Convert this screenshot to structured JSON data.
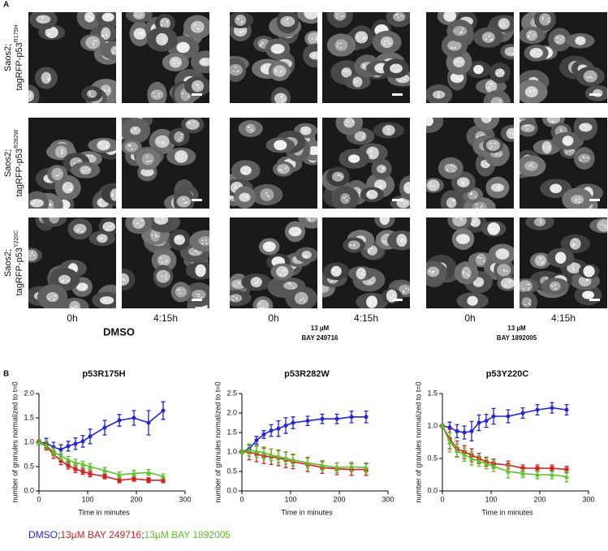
{
  "panel_a": {
    "label": "A",
    "rows": [
      {
        "line1": "Saos2;",
        "line2": "tagRFP-p53",
        "superscript": "R175H"
      },
      {
        "line1": "Saos2;",
        "line2": "tagRFP-p53",
        "superscript": "R282W"
      },
      {
        "line1": "Saos2;",
        "line2": "tagRFP-p53",
        "superscript": "Y220C"
      }
    ],
    "groups": [
      {
        "times": [
          "0h",
          "4:15h"
        ],
        "treatment": [
          "DMSO"
        ]
      },
      {
        "times": [
          "0h",
          "4:15h"
        ],
        "treatment": [
          "13 µM",
          "BAY 249716"
        ]
      },
      {
        "times": [
          "0h",
          "4:15h"
        ],
        "treatment": [
          "13 µM",
          "BAY 1892005"
        ]
      }
    ]
  },
  "panel_b": {
    "label": "B",
    "legend_separator": ";"
  },
  "chart_data": [
    {
      "type": "line",
      "title": "p53R175H",
      "y_label": "number of granules normalized to t=0",
      "x_label": "Time in minutes",
      "x": [
        0,
        15,
        30,
        45,
        60,
        75,
        90,
        105,
        135,
        165,
        195,
        225,
        255
      ],
      "xlim": [
        0,
        300
      ],
      "xticks": [
        0,
        100,
        200,
        300
      ],
      "ylim": [
        0,
        2
      ],
      "yticks": [
        {
          "value": 0,
          "label": "0.0"
        },
        0.5,
        {
          "value": 1,
          "label": "1.0"
        },
        1.5,
        {
          "value": 2,
          "label": "2.0"
        }
      ],
      "series": [
        {
          "name": "DMSO",
          "color": "#2424d8",
          "marker": "circle",
          "values": [
            1.0,
            0.98,
            0.9,
            0.85,
            0.92,
            0.97,
            1.02,
            1.12,
            1.3,
            1.45,
            1.5,
            1.4,
            1.65
          ],
          "errors": [
            0.05,
            0.1,
            0.1,
            0.1,
            0.1,
            0.12,
            0.12,
            0.15,
            0.15,
            0.12,
            0.15,
            0.25,
            0.18
          ]
        },
        {
          "name": "13µM BAY 249716",
          "color": "#d42020",
          "marker": "square",
          "values": [
            1.0,
            0.92,
            0.75,
            0.62,
            0.52,
            0.45,
            0.4,
            0.35,
            0.3,
            0.22,
            0.25,
            0.22,
            0.22
          ],
          "errors": [
            0.05,
            0.08,
            0.08,
            0.08,
            0.07,
            0.07,
            0.06,
            0.06,
            0.05,
            0.05,
            0.05,
            0.05,
            0.05
          ]
        },
        {
          "name": "13µM BAY 1892005",
          "color": "#5cc228",
          "marker": "triangle",
          "values": [
            1.0,
            0.94,
            0.8,
            0.72,
            0.64,
            0.58,
            0.55,
            0.5,
            0.42,
            0.33,
            0.36,
            0.38,
            0.3
          ],
          "errors": [
            0.05,
            0.08,
            0.08,
            0.08,
            0.07,
            0.07,
            0.06,
            0.06,
            0.06,
            0.06,
            0.06,
            0.06,
            0.05
          ]
        }
      ]
    },
    {
      "type": "line",
      "title": "p53R282W",
      "y_label": "number of granules normalized to t=0",
      "x_label": "Time in minutes",
      "x": [
        0,
        15,
        30,
        45,
        60,
        75,
        90,
        105,
        135,
        165,
        195,
        225,
        255
      ],
      "xlim": [
        0,
        300
      ],
      "xticks": [
        0,
        100,
        200,
        300
      ],
      "ylim": [
        0,
        2.5
      ],
      "yticks": [
        {
          "value": 0,
          "label": "0.0"
        },
        0.5,
        {
          "value": 1,
          "label": "1.0"
        },
        1.5,
        {
          "value": 2,
          "label": "2.0"
        },
        2.5
      ],
      "series": [
        {
          "name": "DMSO",
          "color": "#2424d8",
          "marker": "circle",
          "values": [
            1.0,
            1.08,
            1.3,
            1.45,
            1.55,
            1.6,
            1.68,
            1.75,
            1.8,
            1.85,
            1.85,
            1.9,
            1.9
          ],
          "errors": [
            0.05,
            0.1,
            0.1,
            0.1,
            0.15,
            0.2,
            0.2,
            0.15,
            0.12,
            0.12,
            0.12,
            0.15,
            0.15
          ]
        },
        {
          "name": "13µM BAY 249716",
          "color": "#d42020",
          "marker": "square",
          "values": [
            1.0,
            1.0,
            0.95,
            0.9,
            0.88,
            0.85,
            0.8,
            0.75,
            0.68,
            0.6,
            0.57,
            0.55,
            0.55
          ],
          "errors": [
            0.05,
            0.2,
            0.2,
            0.2,
            0.2,
            0.2,
            0.2,
            0.18,
            0.18,
            0.15,
            0.15,
            0.15,
            0.15
          ]
        },
        {
          "name": "13µM BAY 1892005",
          "color": "#5cc228",
          "marker": "triangle",
          "values": [
            1.0,
            1.05,
            1.02,
            0.98,
            0.93,
            0.88,
            0.84,
            0.8,
            0.72,
            0.66,
            0.6,
            0.62,
            0.6
          ],
          "errors": [
            0.05,
            0.15,
            0.15,
            0.15,
            0.15,
            0.15,
            0.15,
            0.15,
            0.12,
            0.12,
            0.12,
            0.12,
            0.12
          ]
        }
      ]
    },
    {
      "type": "line",
      "title": "p53Y220C",
      "y_label": "number of granules normalized to t=0",
      "x_label": "Time in minutes",
      "x": [
        0,
        15,
        30,
        45,
        60,
        75,
        90,
        105,
        135,
        165,
        195,
        225,
        255
      ],
      "xlim": [
        0,
        300
      ],
      "xticks": [
        0,
        100,
        200,
        300
      ],
      "ylim": [
        0,
        1.5
      ],
      "yticks": [
        {
          "value": 0,
          "label": "0.0"
        },
        0.5,
        {
          "value": 1,
          "label": "1.0"
        },
        1.5
      ],
      "series": [
        {
          "name": "DMSO",
          "color": "#2424d8",
          "marker": "circle",
          "values": [
            1.0,
            0.98,
            0.92,
            0.9,
            0.92,
            1.05,
            1.08,
            1.15,
            1.15,
            1.2,
            1.25,
            1.28,
            1.25
          ],
          "errors": [
            0.03,
            0.08,
            0.1,
            0.1,
            0.15,
            0.12,
            0.1,
            0.12,
            0.1,
            0.08,
            0.08,
            0.08,
            0.08
          ]
        },
        {
          "name": "13µM BAY 249716",
          "color": "#d42020",
          "marker": "square",
          "values": [
            1.0,
            0.8,
            0.65,
            0.6,
            0.55,
            0.5,
            0.45,
            0.42,
            0.4,
            0.35,
            0.35,
            0.35,
            0.33
          ],
          "errors": [
            0.03,
            0.15,
            0.12,
            0.1,
            0.1,
            0.08,
            0.07,
            0.07,
            0.06,
            0.05,
            0.05,
            0.05,
            0.05
          ]
        },
        {
          "name": "13µM BAY 1892005",
          "color": "#5cc228",
          "marker": "triangle",
          "values": [
            1.0,
            0.75,
            0.62,
            0.56,
            0.5,
            0.46,
            0.42,
            0.38,
            0.3,
            0.27,
            0.25,
            0.25,
            0.22
          ],
          "errors": [
            0.03,
            0.15,
            0.1,
            0.1,
            0.1,
            0.08,
            0.08,
            0.08,
            0.1,
            0.06,
            0.06,
            0.06,
            0.08
          ]
        }
      ]
    }
  ]
}
